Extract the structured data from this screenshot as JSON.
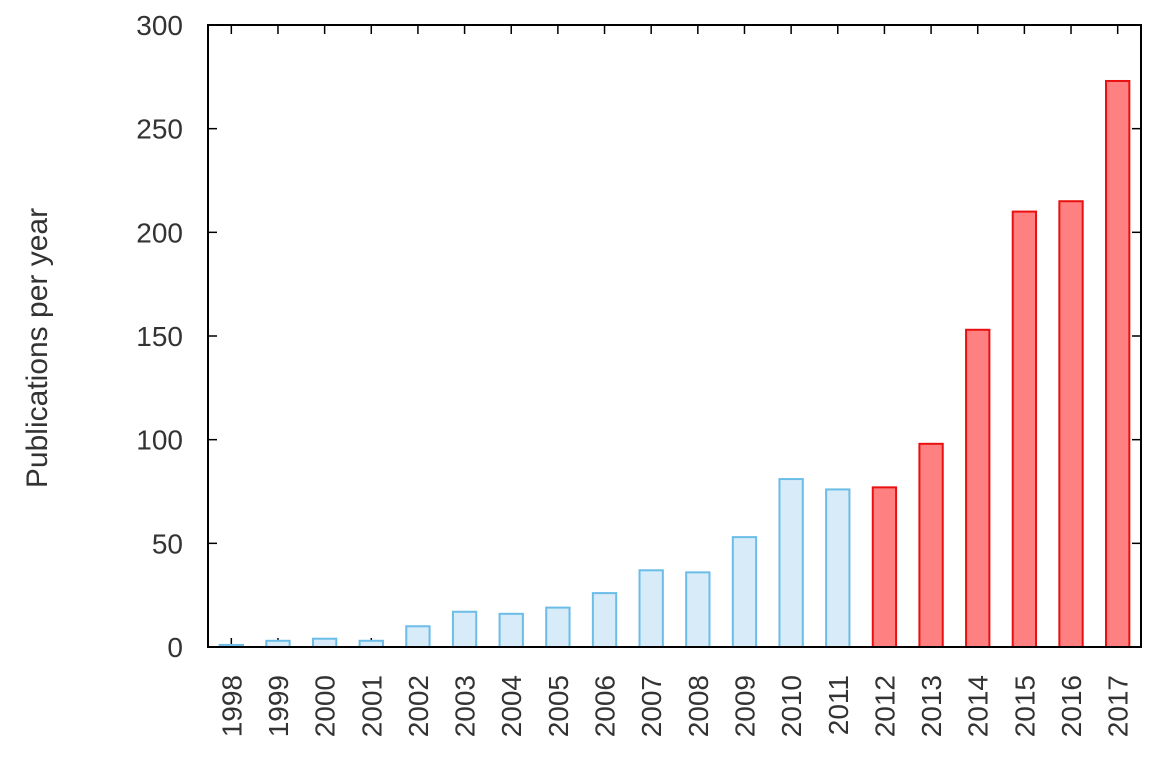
{
  "chart_data": {
    "type": "bar",
    "ylabel": "Publications per year",
    "xlabel": "",
    "ylim": [
      0,
      300
    ],
    "yticks": [
      0,
      50,
      100,
      150,
      200,
      250,
      300
    ],
    "grid": false,
    "categories": [
      "1998",
      "1999",
      "2000",
      "2001",
      "2002",
      "2003",
      "2004",
      "2005",
      "2006",
      "2007",
      "2008",
      "2009",
      "2010",
      "2011",
      "2012",
      "2013",
      "2014",
      "2015",
      "2016",
      "2017"
    ],
    "values": [
      1,
      3,
      4,
      3,
      10,
      17,
      16,
      19,
      26,
      37,
      36,
      53,
      81,
      76,
      77,
      98,
      153,
      210,
      215,
      273
    ],
    "colors": {
      "early_fill": "#d7ebf8",
      "early_stroke": "#6bbde8",
      "recent_fill": "#ff8080",
      "recent_stroke": "#e81010",
      "axis": "#000000",
      "text": "#333333"
    },
    "highlight_from": "2012"
  }
}
